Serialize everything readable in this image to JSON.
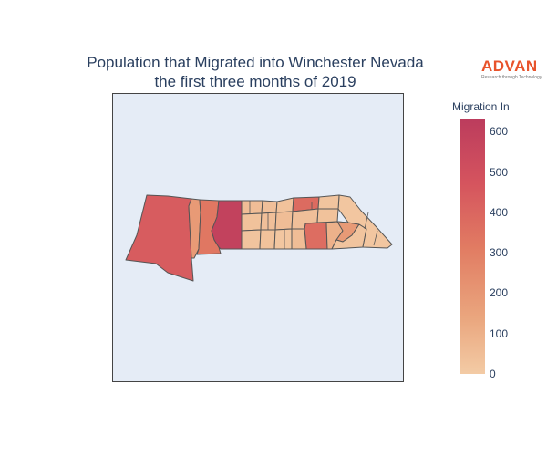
{
  "title": {
    "line1": "Population that Migrated into Winchester Nevada",
    "line2": "the first three months of 2019"
  },
  "logo": {
    "name": "ADVAN",
    "tagline": "Research through Technology"
  },
  "colorbar": {
    "title": "Migration In",
    "min": 0,
    "max": 630,
    "ticks": [
      "0",
      "100",
      "200",
      "300",
      "400",
      "500",
      "600"
    ],
    "colorscale": [
      "#f3cba5",
      "#eaa67e",
      "#e17b62",
      "#d5545e",
      "#bc3c5d"
    ]
  },
  "map": {
    "region": "Winchester, Nevada",
    "background_color": "#e5ecf6",
    "border_color": "#555555",
    "areas": [
      {
        "id": "west-large",
        "value": 440
      },
      {
        "id": "west-middle-strip",
        "value": 200
      },
      {
        "id": "west-lower-block",
        "value": 330
      },
      {
        "id": "center-west-block",
        "value": 590
      },
      {
        "id": "center-north-1",
        "value": 60
      },
      {
        "id": "center-north-2",
        "value": 50
      },
      {
        "id": "center-north-3",
        "value": 40
      },
      {
        "id": "center-mid-1",
        "value": 40
      },
      {
        "id": "center-mid-2",
        "value": 50
      },
      {
        "id": "center-mid-3",
        "value": 60
      },
      {
        "id": "center-south-1",
        "value": 30
      },
      {
        "id": "center-south-2",
        "value": 40
      },
      {
        "id": "center-south-3",
        "value": 20
      },
      {
        "id": "east-north-red",
        "value": 380
      },
      {
        "id": "east-mid-red",
        "value": 370
      },
      {
        "id": "east-mid-light-1",
        "value": 50
      },
      {
        "id": "east-mid-light-2",
        "value": 40
      },
      {
        "id": "east-south-1",
        "value": 60
      },
      {
        "id": "east-south-2",
        "value": 110
      },
      {
        "id": "east-south-3",
        "value": 200
      },
      {
        "id": "east-south-4",
        "value": 30
      },
      {
        "id": "east-tip",
        "value": 20
      },
      {
        "id": "east-north-strip",
        "value": 30
      }
    ]
  }
}
